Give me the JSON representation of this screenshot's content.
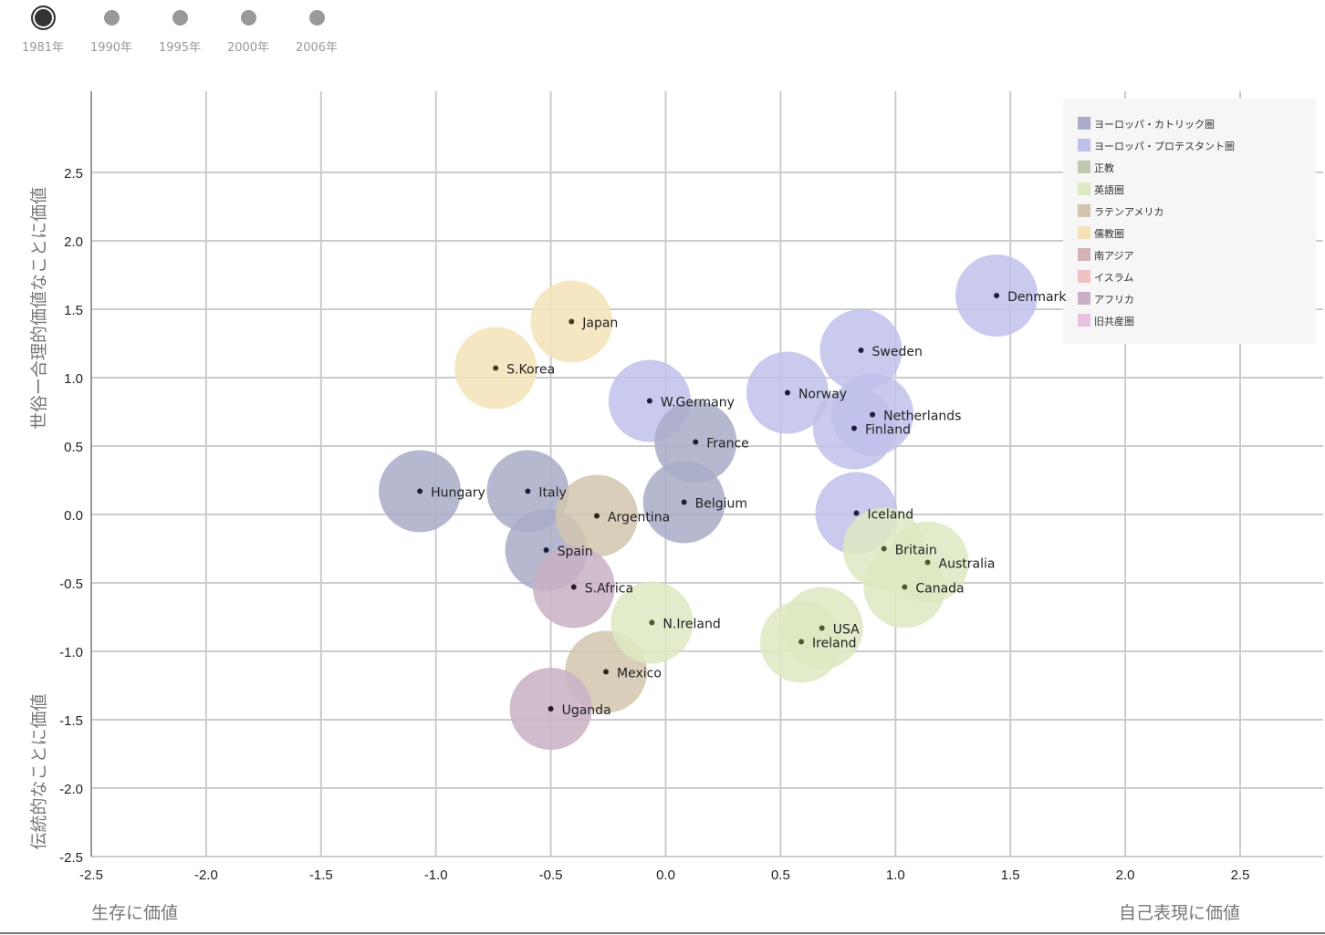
{
  "timeline": {
    "items": [
      {
        "label": "1981年",
        "active": true
      },
      {
        "label": "1990年",
        "active": false
      },
      {
        "label": "1995年",
        "active": false
      },
      {
        "label": "2000年",
        "active": false
      },
      {
        "label": "2006年",
        "active": false
      }
    ]
  },
  "chart_data": {
    "type": "scatter",
    "subtype": "bubble",
    "title": "",
    "xlabel_left": "生存に価値",
    "xlabel_right": "自己表現に価値",
    "ylabel_top": "世俗ー合理的価値なことに価値",
    "ylabel_bottom": "伝統的なことに価値",
    "xlim": [
      -2.5,
      2.85
    ],
    "ylim": [
      -2.5,
      2.9
    ],
    "xticks": [
      "-2.5",
      "-2.0",
      "-1.5",
      "-1.0",
      "-0.5",
      "0.0",
      "0.5",
      "1.0",
      "1.5",
      "2.0",
      "2.5"
    ],
    "xtick_values": [
      -2.5,
      -2.0,
      -1.5,
      -1.0,
      -0.5,
      0.0,
      0.5,
      1.0,
      1.5,
      2.0,
      2.5
    ],
    "yticks": [
      "2.5",
      "2.0",
      "1.5",
      "1.0",
      "0.5",
      "0.0",
      "-0.5",
      "-1.0",
      "-1.5",
      "-2.0",
      "-2.5"
    ],
    "ytick_values": [
      2.5,
      2.0,
      1.5,
      1.0,
      0.5,
      0.0,
      -0.5,
      -1.0,
      -1.5,
      -2.0,
      -2.5
    ],
    "grid": true,
    "legend_position": "top-right",
    "groups": [
      {
        "name": "ヨーロッパ・カトリック圏",
        "color": "#a9abc8"
      },
      {
        "name": "ヨーロッパ・プロテスタント圏",
        "color": "#bfc1ea"
      },
      {
        "name": "正教",
        "color": "#c0c9b0"
      },
      {
        "name": "英語圏",
        "color": "#dde9c2"
      },
      {
        "name": "ラテンアメリカ",
        "color": "#d2c6ae"
      },
      {
        "name": "儒教圏",
        "color": "#f4e3b8"
      },
      {
        "name": "南アジア",
        "color": "#d3b2b4"
      },
      {
        "name": "イスラム",
        "color": "#efc0c4"
      },
      {
        "name": "アフリカ",
        "color": "#c9b0c6"
      },
      {
        "name": "旧共産圏",
        "color": "#e9c2e2"
      }
    ],
    "points": [
      {
        "name": "Denmark",
        "group": 1,
        "x": 1.44,
        "y": 1.6
      },
      {
        "name": "Sweden",
        "group": 1,
        "x": 0.85,
        "y": 1.2
      },
      {
        "name": "Norway",
        "group": 1,
        "x": 0.53,
        "y": 0.89
      },
      {
        "name": "Netherlands",
        "group": 1,
        "x": 0.9,
        "y": 0.73
      },
      {
        "name": "Finland",
        "group": 1,
        "x": 0.82,
        "y": 0.63
      },
      {
        "name": "Iceland",
        "group": 1,
        "x": 0.83,
        "y": 0.01
      },
      {
        "name": "W.Germany",
        "group": 1,
        "x": -0.07,
        "y": 0.83
      },
      {
        "name": "France",
        "group": 0,
        "x": 0.13,
        "y": 0.53
      },
      {
        "name": "Belgium",
        "group": 0,
        "x": 0.08,
        "y": 0.09
      },
      {
        "name": "Hungary",
        "group": 0,
        "x": -1.07,
        "y": 0.17
      },
      {
        "name": "Italy",
        "group": 0,
        "x": -0.6,
        "y": 0.17
      },
      {
        "name": "Spain",
        "group": 0,
        "x": -0.52,
        "y": -0.26
      },
      {
        "name": "Argentina",
        "group": 4,
        "x": -0.3,
        "y": -0.01
      },
      {
        "name": "Mexico",
        "group": 4,
        "x": -0.26,
        "y": -1.15
      },
      {
        "name": "Japan",
        "group": 5,
        "x": -0.41,
        "y": 1.41
      },
      {
        "name": "S.Korea",
        "group": 5,
        "x": -0.74,
        "y": 1.07
      },
      {
        "name": "S.Africa",
        "group": 8,
        "x": -0.4,
        "y": -0.53
      },
      {
        "name": "Uganda",
        "group": 8,
        "x": -0.5,
        "y": -1.42
      },
      {
        "name": "N.Ireland",
        "group": 3,
        "x": -0.06,
        "y": -0.79
      },
      {
        "name": "Britain",
        "group": 3,
        "x": 0.95,
        "y": -0.25
      },
      {
        "name": "Australia",
        "group": 3,
        "x": 1.14,
        "y": -0.35
      },
      {
        "name": "Canada",
        "group": 3,
        "x": 1.04,
        "y": -0.53
      },
      {
        "name": "USA",
        "group": 3,
        "x": 0.68,
        "y": -0.83
      },
      {
        "name": "Ireland",
        "group": 3,
        "x": 0.59,
        "y": -0.93
      }
    ]
  },
  "colors": {
    "grid": "#cccccc",
    "axis": "#999999",
    "legend_bg": "#f6f6f6",
    "dot_catholic": "#1e1e3c",
    "dot_default": "#333333"
  }
}
